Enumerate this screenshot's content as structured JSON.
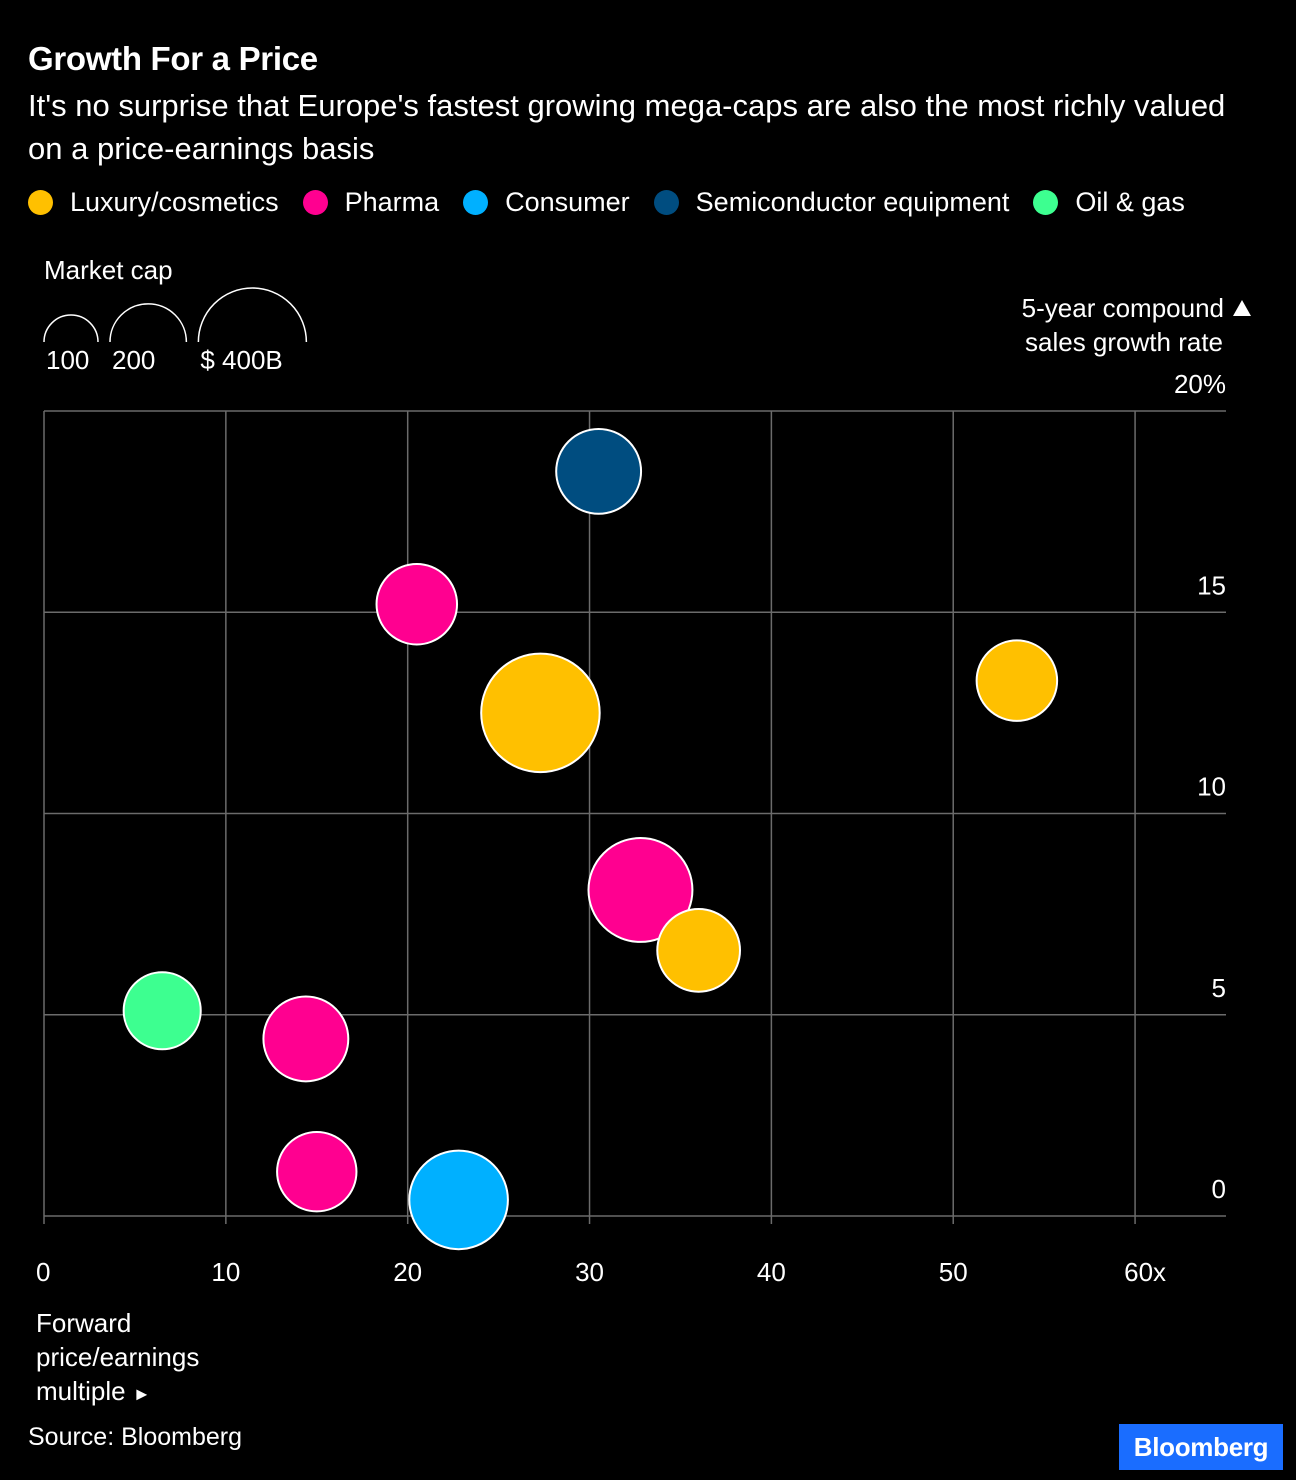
{
  "header": {
    "title": "Growth For a Price",
    "subtitle": "It's no surprise that Europe's fastest growing mega-caps are also the most richly valued on a price-earnings basis"
  },
  "legend": [
    {
      "label": "Luxury/cosmetics",
      "color": "#ffc000"
    },
    {
      "label": "Pharma",
      "color": "#ff0090"
    },
    {
      "label": "Consumer",
      "color": "#00b0ff"
    },
    {
      "label": "Semiconductor equipment",
      "color": "#004d80"
    },
    {
      "label": "Oil & gas",
      "color": "#3dff90"
    }
  ],
  "size_legend": {
    "title": "Market cap",
    "entries": [
      {
        "label": "100",
        "value": 100
      },
      {
        "label": "200",
        "value": 200
      },
      {
        "label": "$ 400B",
        "value": 400
      }
    ]
  },
  "footer": {
    "source": "Source: Bloomberg",
    "logo": "Bloomberg"
  },
  "chart_data": {
    "type": "scatter",
    "title": "Growth For a Price",
    "subtitle": "It's no surprise that Europe's fastest growing mega-caps are also the most richly valued on a price-earnings basis",
    "xlabel": "Forward price/earnings multiple",
    "ylabel": "5-year compound sales growth rate",
    "xlim": [
      0,
      65
    ],
    "ylim": [
      0,
      20
    ],
    "x_ticks": [
      0,
      10,
      20,
      30,
      40,
      50,
      60
    ],
    "x_tick_labels": [
      "0",
      "10",
      "20",
      "30",
      "40",
      "50",
      "60x"
    ],
    "y_ticks": [
      0,
      5,
      10,
      15,
      20
    ],
    "y_tick_labels": [
      "0",
      "5",
      "10",
      "15",
      "20%"
    ],
    "grid": true,
    "size_encoding": "Market cap ($B)",
    "points": [
      {
        "x": 30.5,
        "y": 18.5,
        "size": 200,
        "category": "Semiconductor equipment"
      },
      {
        "x": 20.5,
        "y": 15.2,
        "size": 180,
        "category": "Pharma"
      },
      {
        "x": 27.3,
        "y": 12.5,
        "size": 390,
        "category": "Luxury/cosmetics"
      },
      {
        "x": 53.5,
        "y": 13.3,
        "size": 180,
        "category": "Luxury/cosmetics"
      },
      {
        "x": 32.8,
        "y": 8.1,
        "size": 300,
        "category": "Pharma"
      },
      {
        "x": 36.0,
        "y": 6.6,
        "size": 190,
        "category": "Luxury/cosmetics"
      },
      {
        "x": 6.5,
        "y": 5.1,
        "size": 165,
        "category": "Oil & gas"
      },
      {
        "x": 14.4,
        "y": 4.4,
        "size": 200,
        "category": "Pharma"
      },
      {
        "x": 15.0,
        "y": 1.1,
        "size": 175,
        "category": "Pharma"
      },
      {
        "x": 22.8,
        "y": 0.4,
        "size": 270,
        "category": "Consumer"
      }
    ]
  }
}
